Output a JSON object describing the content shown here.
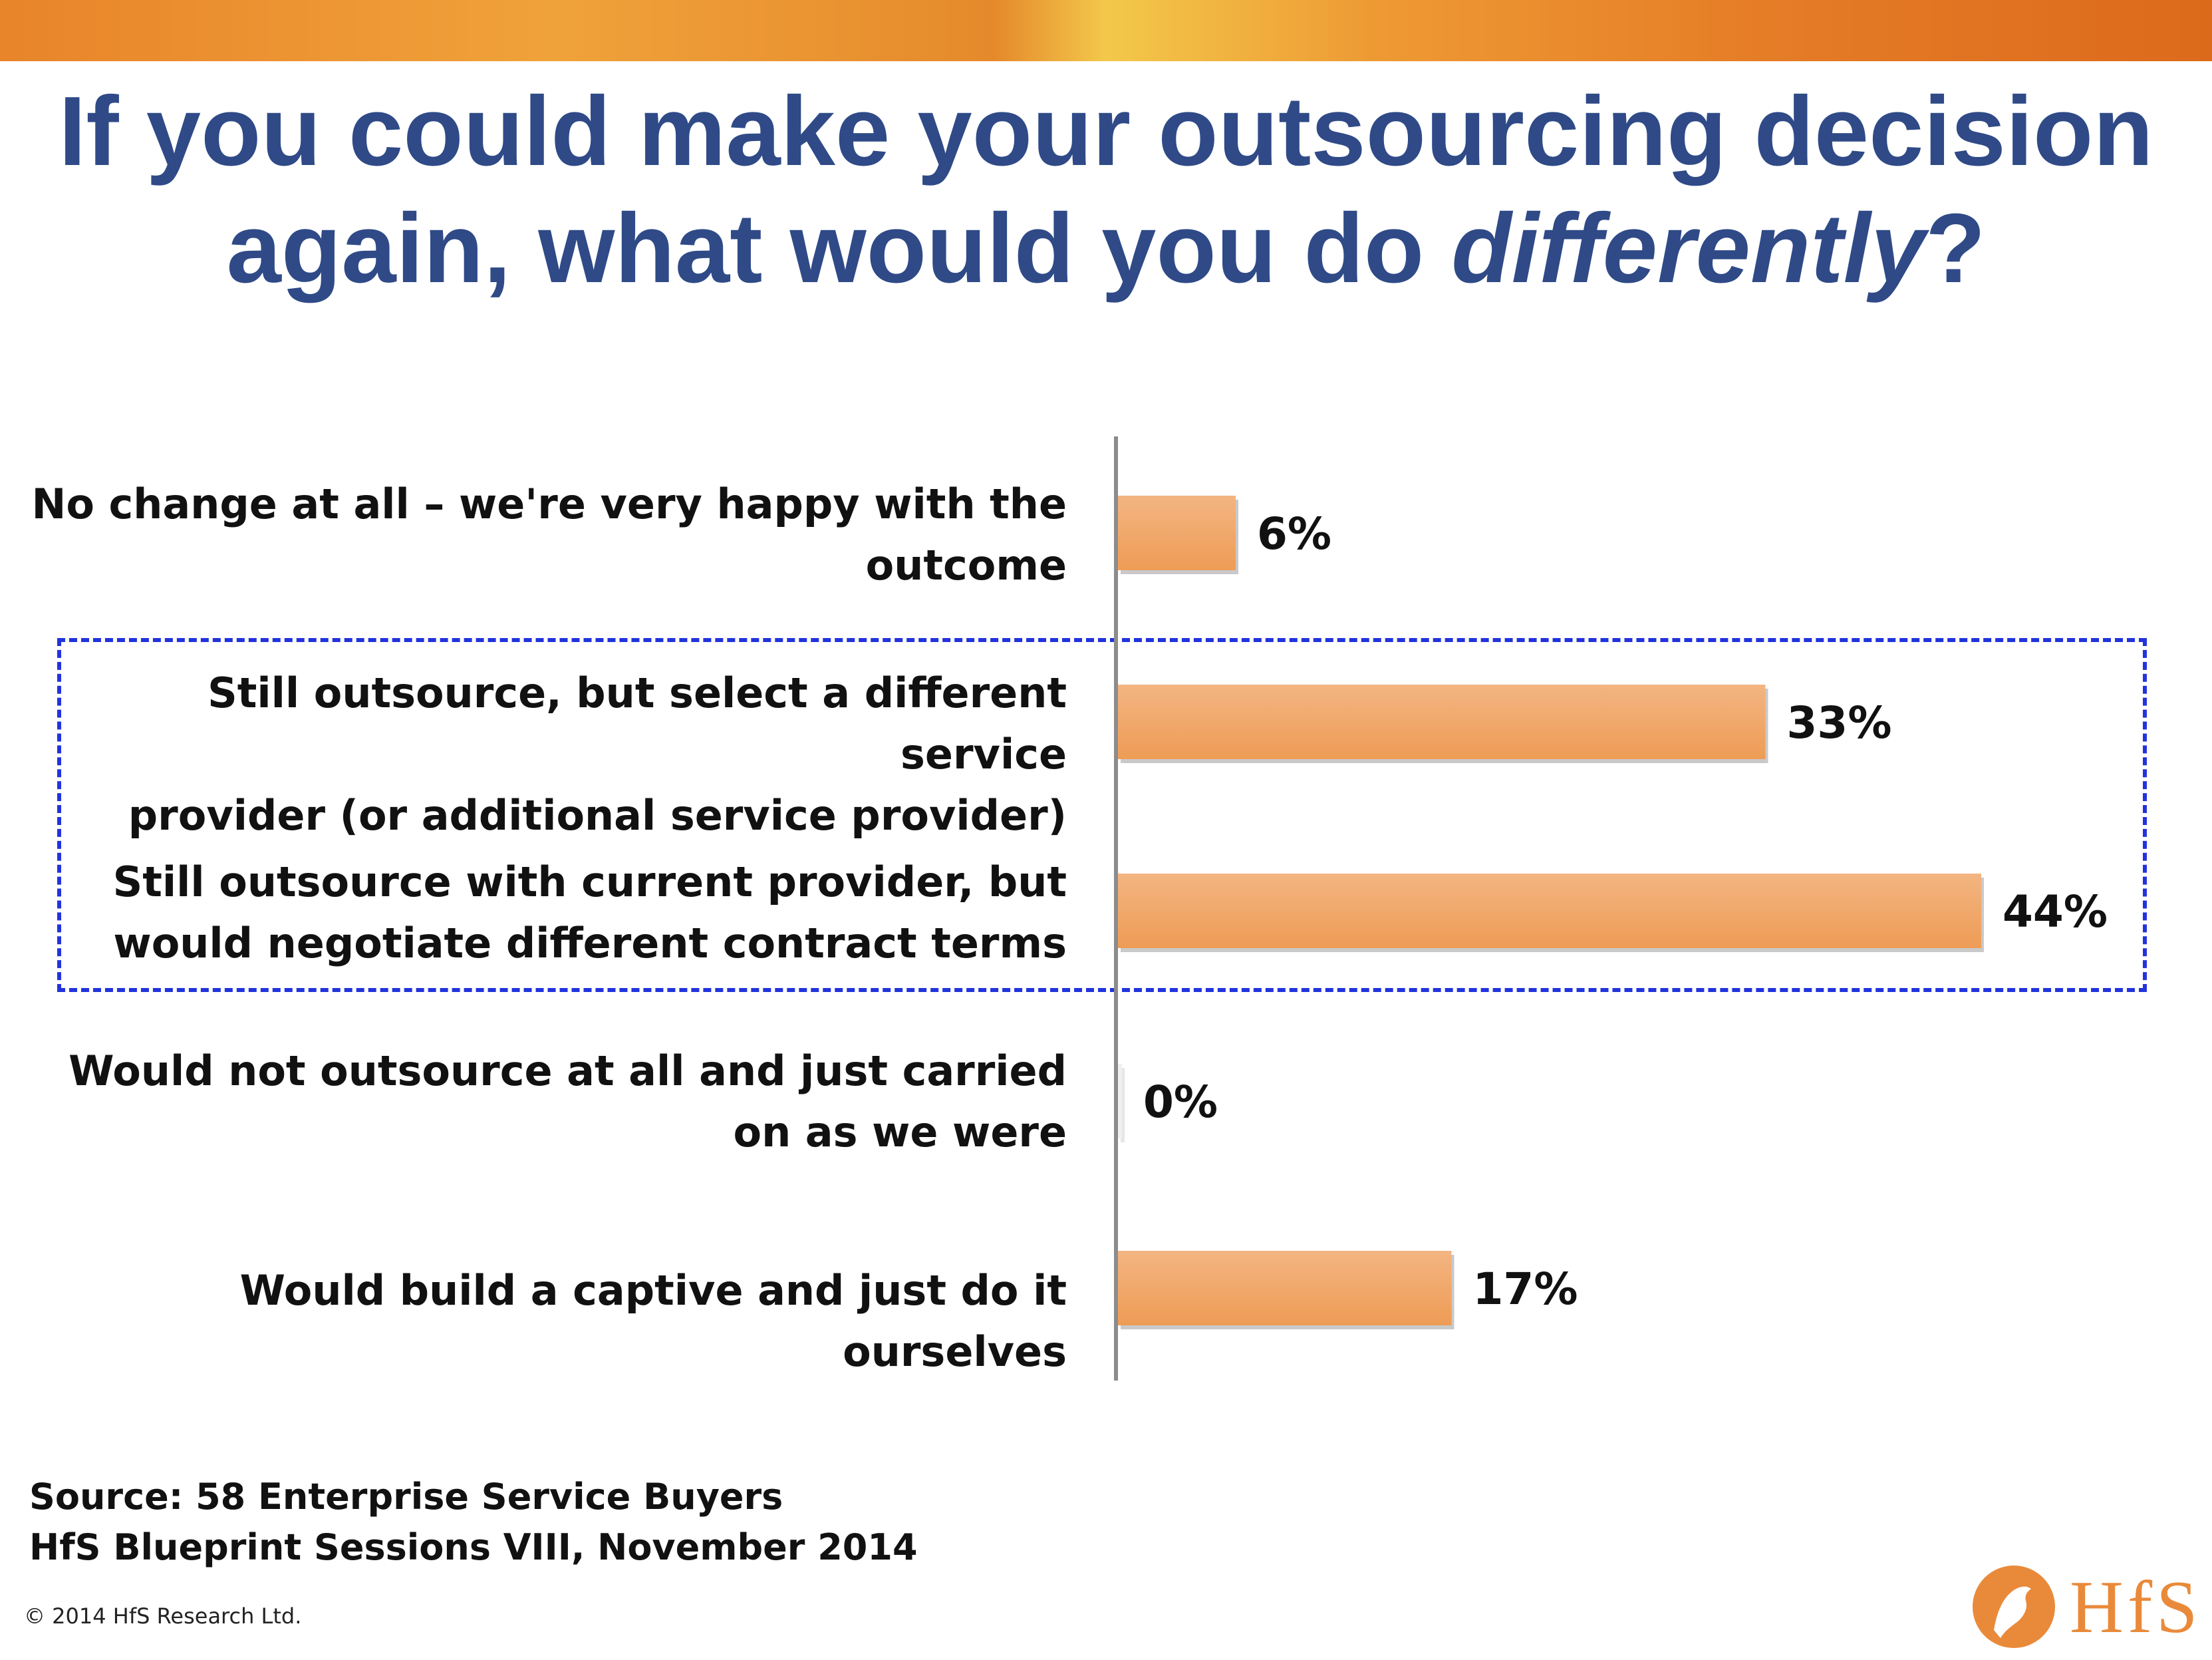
{
  "header": {
    "title_line1": "If you could make your outsourcing decision",
    "title_line2_prefix": "again, what would you do ",
    "title_line2_italic": "differently",
    "title_line2_suffix": "?"
  },
  "chart_data": {
    "type": "bar",
    "orientation": "horizontal",
    "title": "If you could make your outsourcing decision again, what would you do differently?",
    "categories": [
      [
        "No change at all – we're very happy with the",
        "outcome"
      ],
      [
        "Still outsource, but select a different service",
        "provider (or additional service provider)"
      ],
      [
        "Still outsource with current provider, but",
        "would negotiate different contract terms"
      ],
      [
        "Would not outsource at all and just carried",
        "on as we were"
      ],
      [
        "Would build a captive and just do it ourselves"
      ]
    ],
    "values": [
      6,
      33,
      44,
      0,
      17
    ],
    "value_labels": [
      "6%",
      "33%",
      "44%",
      "0%",
      "17%"
    ],
    "unit": "%",
    "highlighted_categories": [
      1,
      2
    ],
    "bar_color": "#ee9c55",
    "bar_color_light": "#f3b582",
    "highlight_box_color": "#2233dd",
    "grid": false,
    "legend": "none"
  },
  "footer": {
    "source_line1": "Source: 58 Enterprise Service Buyers",
    "source_line2": "HfS Blueprint Sessions VIII, November 2014",
    "copyright": "© 2014 HfS Research Ltd.",
    "logo_text": "HfS"
  },
  "colors": {
    "title": "#2f4a87",
    "accent_orange": "#e8842a"
  }
}
